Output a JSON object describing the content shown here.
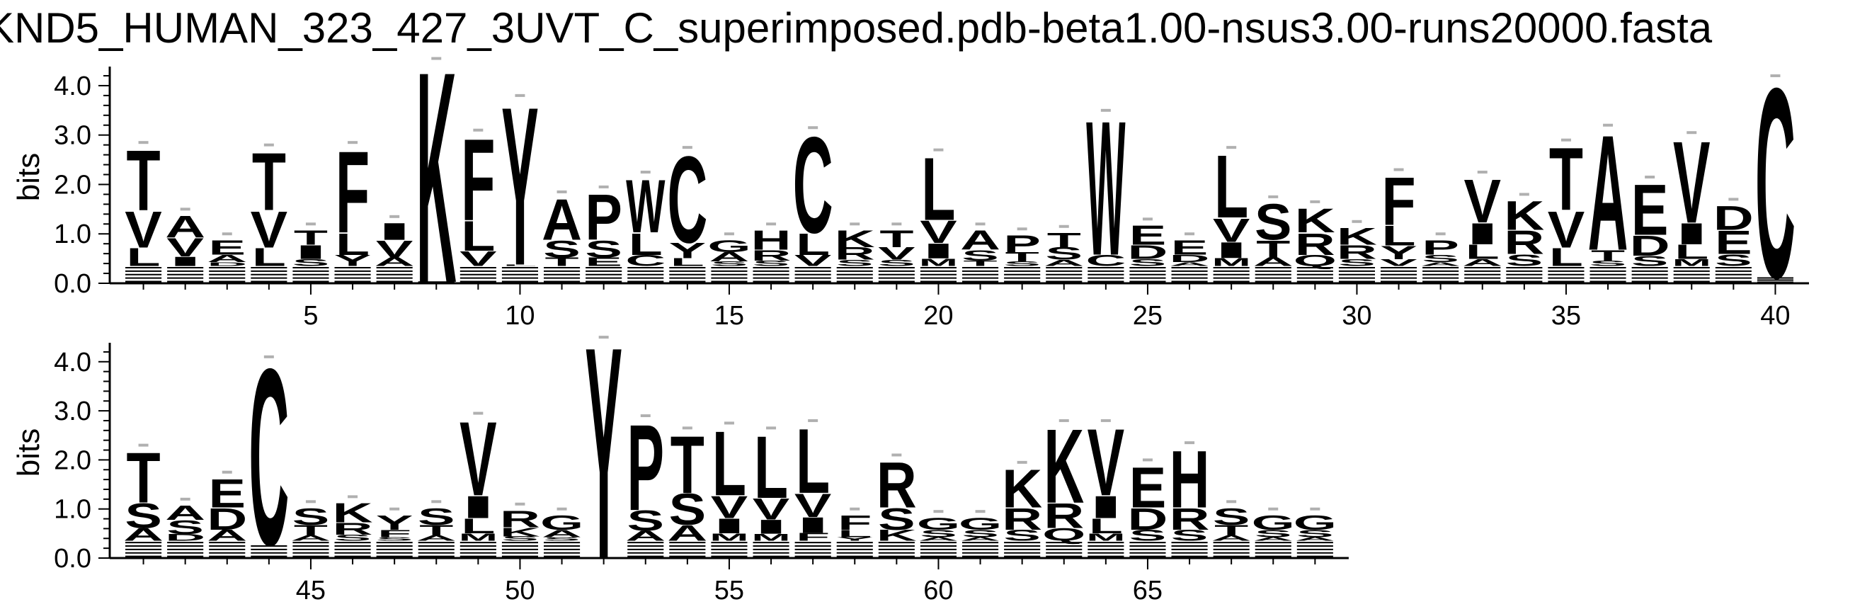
{
  "title": "KND5_HUMAN_323_427_3UVT_C_superimposed.pdb-beta1.00-nsus3.00-runs20000.fasta",
  "chart_data": {
    "type": "sequence-logo",
    "ylabel": "bits",
    "ylim": [
      0,
      4.3
    ],
    "yticks": [
      "0.0",
      "1.0",
      "2.0",
      "3.0",
      "4.0"
    ],
    "panels": [
      {
        "positions": [
          1,
          40
        ],
        "xticks": [
          5,
          10,
          15,
          20,
          25,
          30,
          35,
          40
        ],
        "columns": [
          {
            "pos": 1,
            "top": "T",
            "top_h": 1.25,
            "small": [
              "V",
              "L"
            ],
            "total": 2.85
          },
          {
            "pos": 2,
            "top": "A",
            "top_h": 0.45,
            "small": [
              "V",
              "I"
            ],
            "total": 1.5
          },
          {
            "pos": 3,
            "top": "E",
            "top_h": 0.3,
            "small": [
              "A",
              "D"
            ],
            "total": 1.0
          },
          {
            "pos": 4,
            "top": "T",
            "top_h": 1.2,
            "small": [
              "V",
              "L"
            ],
            "total": 2.8
          },
          {
            "pos": 5,
            "top": "T",
            "top_h": 0.3,
            "small": [
              "I",
              "S"
            ],
            "total": 1.2
          },
          {
            "pos": 6,
            "top": "F",
            "top_h": 1.7,
            "small": [
              "L",
              "Y"
            ],
            "total": 2.85
          },
          {
            "pos": 7,
            "top": "I",
            "top_h": 0.35,
            "small": [
              "V",
              "A"
            ],
            "total": 1.35
          },
          {
            "pos": 8,
            "top": "K",
            "top_h": 4.4,
            "small": [],
            "total": 4.55
          },
          {
            "pos": 9,
            "top": "F",
            "top_h": 1.7,
            "small": [
              "L",
              "V"
            ],
            "total": 3.1
          },
          {
            "pos": 10,
            "top": "Y",
            "top_h": 3.3,
            "small": [
              "L"
            ],
            "total": 3.8
          },
          {
            "pos": 11,
            "top": "A",
            "top_h": 0.85,
            "small": [
              "S",
              "T"
            ],
            "total": 1.85
          },
          {
            "pos": 12,
            "top": "P",
            "top_h": 0.95,
            "small": [
              "S",
              "E"
            ],
            "total": 1.95
          },
          {
            "pos": 13,
            "top": "W",
            "top_h": 1.1,
            "small": [
              "L",
              "C"
            ],
            "total": 2.25
          },
          {
            "pos": 14,
            "top": "C",
            "top_h": 1.8,
            "small": [
              "Y",
              "L"
            ],
            "total": 2.75
          },
          {
            "pos": 15,
            "top": "G",
            "top_h": 0.25,
            "small": [
              "A",
              "S"
            ],
            "total": 1.0
          },
          {
            "pos": 16,
            "top": "H",
            "top_h": 0.4,
            "small": [
              "R",
              "S"
            ],
            "total": 1.2
          },
          {
            "pos": 17,
            "top": "C",
            "top_h": 2.0,
            "small": [
              "L",
              "V"
            ],
            "total": 3.15
          },
          {
            "pos": 18,
            "top": "K",
            "top_h": 0.35,
            "small": [
              "R",
              "S"
            ],
            "total": 1.2
          },
          {
            "pos": 19,
            "top": "T",
            "top_h": 0.35,
            "small": [
              "V",
              "S"
            ],
            "total": 1.2
          },
          {
            "pos": 20,
            "top": "L",
            "top_h": 1.3,
            "small": [
              "V",
              "I",
              "M"
            ],
            "total": 2.7
          },
          {
            "pos": 21,
            "top": "A",
            "top_h": 0.4,
            "small": [
              "S",
              "T"
            ],
            "total": 1.2
          },
          {
            "pos": 22,
            "top": "P",
            "top_h": 0.35,
            "small": [
              "T",
              "S"
            ],
            "total": 1.1
          },
          {
            "pos": 23,
            "top": "T",
            "top_h": 0.3,
            "small": [
              "S",
              "A"
            ],
            "total": 1.15
          },
          {
            "pos": 24,
            "top": "W",
            "top_h": 2.8,
            "small": [
              "C"
            ],
            "total": 3.5
          },
          {
            "pos": 25,
            "top": "E",
            "top_h": 0.4,
            "small": [
              "D",
              "S"
            ],
            "total": 1.3
          },
          {
            "pos": 26,
            "top": "E",
            "top_h": 0.3,
            "small": [
              "D",
              "A"
            ],
            "total": 1.0
          },
          {
            "pos": 27,
            "top": "L",
            "top_h": 1.3,
            "small": [
              "V",
              "I",
              "M"
            ],
            "total": 2.75
          },
          {
            "pos": 28,
            "top": "S",
            "top_h": 0.75,
            "small": [
              "T",
              "A"
            ],
            "total": 1.75
          },
          {
            "pos": 29,
            "top": "K",
            "top_h": 0.5,
            "small": [
              "R",
              "Q"
            ],
            "total": 1.65
          },
          {
            "pos": 30,
            "top": "K",
            "top_h": 0.35,
            "small": [
              "R",
              "S"
            ],
            "total": 1.25
          },
          {
            "pos": 31,
            "top": "F",
            "top_h": 1.0,
            "small": [
              "L",
              "Y",
              "V"
            ],
            "total": 2.3
          },
          {
            "pos": 32,
            "top": "P",
            "top_h": 0.3,
            "small": [
              "S",
              "A"
            ],
            "total": 1.0
          },
          {
            "pos": 33,
            "top": "V",
            "top_h": 0.9,
            "small": [
              "I",
              "L",
              "A"
            ],
            "total": 2.25
          },
          {
            "pos": 34,
            "top": "K",
            "top_h": 0.6,
            "small": [
              "R",
              "S"
            ],
            "total": 1.8
          },
          {
            "pos": 35,
            "top": "T",
            "top_h": 1.3,
            "small": [
              "V",
              "L"
            ],
            "total": 2.9
          },
          {
            "pos": 36,
            "top": "A",
            "top_h": 2.4,
            "small": [
              "T",
              "S"
            ],
            "total": 3.2
          },
          {
            "pos": 37,
            "top": "E",
            "top_h": 1.05,
            "small": [
              "D",
              "S"
            ],
            "total": 2.15
          },
          {
            "pos": 38,
            "top": "V",
            "top_h": 1.7,
            "small": [
              "I",
              "L",
              "M"
            ],
            "total": 3.05
          },
          {
            "pos": 39,
            "top": "D",
            "top_h": 0.5,
            "small": [
              "E",
              "S"
            ],
            "total": 1.7
          },
          {
            "pos": 40,
            "top": "C",
            "top_h": 3.95,
            "small": [],
            "total": 4.2
          }
        ]
      },
      {
        "positions": [
          41,
          69
        ],
        "xticks": [
          45,
          50,
          55,
          60,
          65
        ],
        "columns": [
          {
            "pos": 41,
            "top": "T",
            "top_h": 1.05,
            "small": [
              "S",
              "A"
            ],
            "total": 2.3
          },
          {
            "pos": 42,
            "top": "A",
            "top_h": 0.3,
            "small": [
              "S",
              "D"
            ],
            "total": 1.2
          },
          {
            "pos": 43,
            "top": "E",
            "top_h": 0.6,
            "small": [
              "D",
              "A"
            ],
            "total": 1.75
          },
          {
            "pos": 44,
            "top": "C",
            "top_h": 3.7,
            "small": [
              "S"
            ],
            "total": 4.1
          },
          {
            "pos": 45,
            "top": "S",
            "top_h": 0.35,
            "small": [
              "T",
              "A"
            ],
            "total": 1.15
          },
          {
            "pos": 46,
            "top": "K",
            "top_h": 0.4,
            "small": [
              "R",
              "S"
            ],
            "total": 1.25
          },
          {
            "pos": 47,
            "top": "Y",
            "top_h": 0.3,
            "small": [
              "F",
              "S"
            ],
            "total": 1.0
          },
          {
            "pos": 48,
            "top": "S",
            "top_h": 0.35,
            "small": [
              "T",
              "A"
            ],
            "total": 1.15
          },
          {
            "pos": 49,
            "top": "V",
            "top_h": 1.55,
            "small": [
              "I",
              "L",
              "M"
            ],
            "total": 2.95
          },
          {
            "pos": 50,
            "top": "R",
            "top_h": 0.35,
            "small": [
              "K",
              "S"
            ],
            "total": 1.1
          },
          {
            "pos": 51,
            "top": "G",
            "top_h": 0.3,
            "small": [
              "A",
              "S"
            ],
            "total": 1.0
          },
          {
            "pos": 52,
            "top": "Y",
            "top_h": 4.45,
            "small": [],
            "total": 4.5
          },
          {
            "pos": 53,
            "top": "P",
            "top_h": 1.8,
            "small": [
              "S",
              "A"
            ],
            "total": 2.9
          },
          {
            "pos": 54,
            "top": "T",
            "top_h": 1.2,
            "small": [
              "S",
              "A"
            ],
            "total": 2.65
          },
          {
            "pos": 55,
            "top": "L",
            "top_h": 1.35,
            "small": [
              "V",
              "I",
              "M"
            ],
            "total": 2.75
          },
          {
            "pos": 56,
            "top": "L",
            "top_h": 1.3,
            "small": [
              "V",
              "I",
              "M"
            ],
            "total": 2.65
          },
          {
            "pos": 57,
            "top": "L",
            "top_h": 1.35,
            "small": [
              "V",
              "I",
              "F"
            ],
            "total": 2.8
          },
          {
            "pos": 58,
            "top": "F",
            "top_h": 0.3,
            "small": [
              "L",
              "Y"
            ],
            "total": 1.0
          },
          {
            "pos": 59,
            "top": "R",
            "top_h": 0.95,
            "small": [
              "S",
              "K"
            ],
            "total": 2.1
          },
          {
            "pos": 60,
            "top": "G",
            "top_h": 0.25,
            "small": [
              "S",
              "A"
            ],
            "total": 0.95
          },
          {
            "pos": 61,
            "top": "G",
            "top_h": 0.25,
            "small": [
              "S",
              "A"
            ],
            "total": 0.95
          },
          {
            "pos": 62,
            "top": "K",
            "top_h": 0.8,
            "small": [
              "R",
              "S"
            ],
            "total": 1.95
          },
          {
            "pos": 63,
            "top": "K",
            "top_h": 1.55,
            "small": [
              "R",
              "Q"
            ],
            "total": 2.8
          },
          {
            "pos": 64,
            "top": "V",
            "top_h": 1.4,
            "small": [
              "I",
              "L",
              "M"
            ],
            "total": 2.8
          },
          {
            "pos": 65,
            "top": "E",
            "top_h": 0.85,
            "small": [
              "D",
              "S"
            ],
            "total": 2.0
          },
          {
            "pos": 66,
            "top": "H",
            "top_h": 1.2,
            "small": [
              "R",
              "S"
            ],
            "total": 2.35
          },
          {
            "pos": 67,
            "top": "S",
            "top_h": 0.35,
            "small": [
              "T",
              "A"
            ],
            "total": 1.15
          },
          {
            "pos": 68,
            "top": "G",
            "top_h": 0.3,
            "small": [
              "S",
              "A"
            ],
            "total": 1.0
          },
          {
            "pos": 69,
            "top": "G",
            "top_h": 0.3,
            "small": [
              "S",
              "A"
            ],
            "total": 1.0
          }
        ]
      }
    ]
  }
}
